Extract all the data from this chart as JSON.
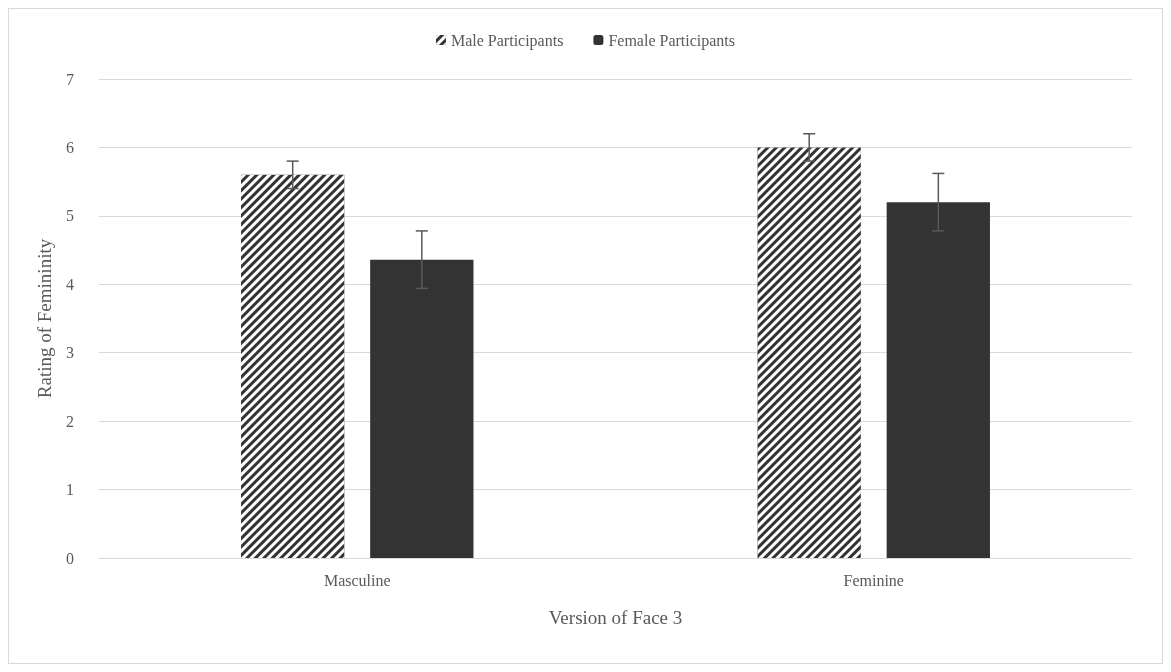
{
  "chart_data": {
    "type": "bar",
    "xlabel": "Version of Face 3",
    "ylabel": "Rating of Femininity",
    "categories": [
      "Masculine",
      "Feminine"
    ],
    "series": [
      {
        "name": "Male Participants",
        "color": "#333333",
        "values": [
          5.6,
          6.0
        ],
        "errors": [
          0.2,
          0.2
        ]
      },
      {
        "name": "Female Participants",
        "color": "#333333",
        "values": [
          4.36,
          5.2
        ],
        "errors": [
          0.42,
          0.42
        ]
      }
    ],
    "ylim": [
      0,
      7
    ],
    "yticks": [
      0,
      1,
      2,
      3,
      4,
      5,
      6,
      7
    ],
    "grid": "y",
    "legend": "top"
  }
}
